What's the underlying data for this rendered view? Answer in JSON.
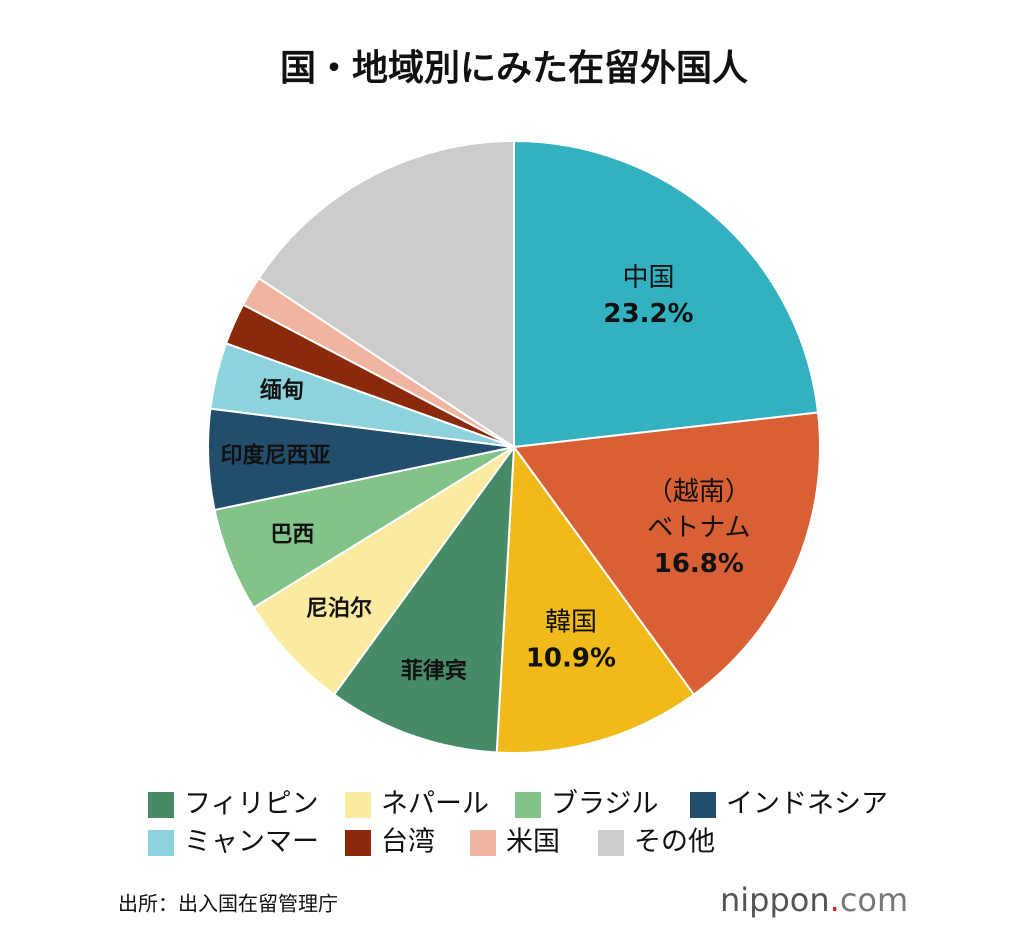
{
  "chart_data": {
    "type": "pie",
    "title": "国・地域別にみた在留外国人",
    "categories": [
      "中国",
      "ベトナム",
      "韓国",
      "フィリピン",
      "ネパール",
      "ブラジル",
      "インドネシア",
      "ミャンマー",
      "台湾",
      "米国",
      "その他"
    ],
    "values": [
      23.2,
      16.8,
      10.9,
      9.1,
      6.2,
      5.5,
      5.3,
      3.5,
      2.2,
      1.6,
      15.7
    ],
    "value_labels": [
      "23.2%",
      "16.8%",
      "10.9%",
      null,
      null,
      null,
      null,
      null,
      null,
      null,
      null
    ],
    "slice_labels": [
      null,
      "（越南）",
      null,
      "菲律宾",
      "尼泊尔",
      "巴西",
      "印度尼西亚",
      "缅甸",
      null,
      null,
      null
    ],
    "colors": [
      "#33b1c1",
      "#d95f35",
      "#efba1a",
      "#468a68",
      "#fbeba0",
      "#82c487",
      "#224e6c",
      "#8dd2dc",
      "#8b2a0a",
      "#f0b5a0",
      "#cccccc"
    ],
    "source": "出所：出入国在留管理庁",
    "logo": [
      "nippon",
      ".",
      "com"
    ]
  }
}
